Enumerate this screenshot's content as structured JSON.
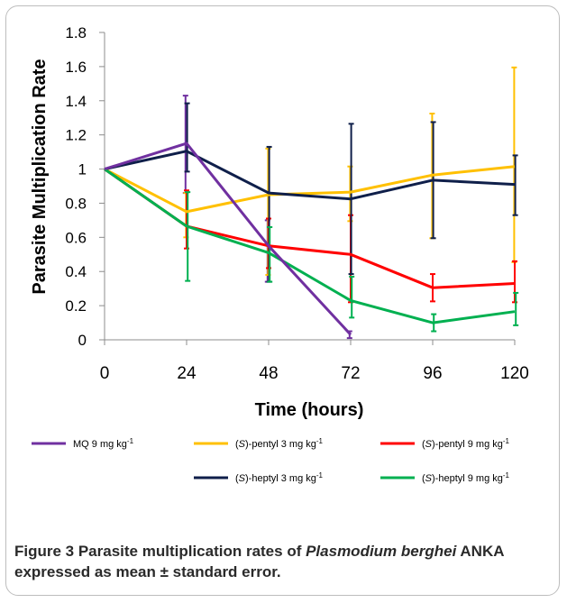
{
  "chart_data": {
    "type": "line",
    "xlabel": "Time (hours)",
    "ylabel": "Parasite Multiplication Rate",
    "x": [
      0,
      24,
      48,
      72,
      96,
      120
    ],
    "xlim": [
      0,
      120
    ],
    "ylim": [
      0,
      1.8
    ],
    "yticks": [
      "0",
      "0.2",
      "0.4",
      "0.6",
      "0.8",
      "1",
      "1.2",
      "1.4",
      "1.6",
      "1.8"
    ],
    "xticks": [
      "0",
      "24",
      "48",
      "72",
      "96",
      "120"
    ],
    "grid": false,
    "legend_position": "bottom",
    "series": [
      {
        "name": "MQ 9 mg kg-1",
        "name_main": "MQ 9 mg kg",
        "name_prefix": "",
        "name_italic": "",
        "name_suffix": "MQ 9 mg kg",
        "name_sup": "-1",
        "color": "#7030a0",
        "x": [
          0,
          24,
          48,
          72
        ],
        "values": [
          1.0,
          1.15,
          0.55,
          0.03
        ],
        "err_plus": [
          0,
          0.28,
          0.15,
          0.02
        ],
        "err_minus": [
          0,
          0.29,
          0.21,
          0.02
        ]
      },
      {
        "name": "(S)-pentyl 3 mg kg-1",
        "name_main": "(S)-pentyl 3 mg kg",
        "name_prefix": "(",
        "name_italic": "S",
        "name_suffix": ")-pentyl 3 mg kg",
        "name_sup": "-1",
        "color": "#ffc000",
        "x": [
          0,
          24,
          48,
          72,
          96,
          120
        ],
        "values": [
          1.0,
          0.75,
          0.85,
          0.865,
          0.965,
          1.015
        ],
        "err_plus": [
          0,
          0.11,
          0.27,
          0.15,
          0.36,
          0.58
        ],
        "err_minus": [
          0,
          0.15,
          0.47,
          0.17,
          0.37,
          0.56
        ]
      },
      {
        "name": "(S)-pentyl 9 mg kg-1",
        "name_main": "(S)-pentyl 9 mg kg",
        "name_prefix": "(",
        "name_italic": "S",
        "name_suffix": ")-pentyl 9 mg kg",
        "name_sup": "-1",
        "color": "#ff0000",
        "x": [
          0,
          24,
          48,
          72,
          96,
          120
        ],
        "values": [
          1.0,
          0.665,
          0.55,
          0.5,
          0.305,
          0.33
        ],
        "err_plus": [
          0,
          0.21,
          0.16,
          0.23,
          0.08,
          0.13
        ],
        "err_minus": [
          0,
          0.13,
          0.13,
          0.28,
          0.08,
          0.11
        ]
      },
      {
        "name": "(S)-heptyl 3 mg kg-1",
        "name_main": "(S)-heptyl 3 mg kg",
        "name_prefix": "(",
        "name_italic": "S",
        "name_suffix": ")-heptyl 3 mg kg",
        "name_sup": "-1",
        "color": "#0f1f4a",
        "x": [
          0,
          24,
          48,
          72,
          96,
          120
        ],
        "values": [
          1.0,
          1.105,
          0.86,
          0.825,
          0.935,
          0.91
        ],
        "err_plus": [
          0,
          0.28,
          0.27,
          0.44,
          0.34,
          0.17
        ],
        "err_minus": [
          0,
          0.12,
          0.52,
          0.44,
          0.34,
          0.18
        ]
      },
      {
        "name": "(S)-heptyl 9 mg kg-1",
        "name_main": "(S)-heptyl 9 mg kg",
        "name_prefix": "(",
        "name_italic": "S",
        "name_suffix": ")-heptyl 9 mg kg",
        "name_sup": "-1",
        "color": "#00b050",
        "x": [
          0,
          24,
          48,
          72,
          96,
          120
        ],
        "values": [
          1.0,
          0.665,
          0.51,
          0.23,
          0.1,
          0.165
        ],
        "err_plus": [
          0,
          0.2,
          0.15,
          0.14,
          0.05,
          0.11
        ],
        "err_minus": [
          0,
          0.32,
          0.17,
          0.1,
          0.05,
          0.08
        ]
      }
    ]
  },
  "caption": {
    "label": "Figure 3",
    "text_before": " Parasite multiplication rates of ",
    "italic": "Plasmodium berghei",
    "text_after": " ANKA expressed as mean ± standard error."
  }
}
